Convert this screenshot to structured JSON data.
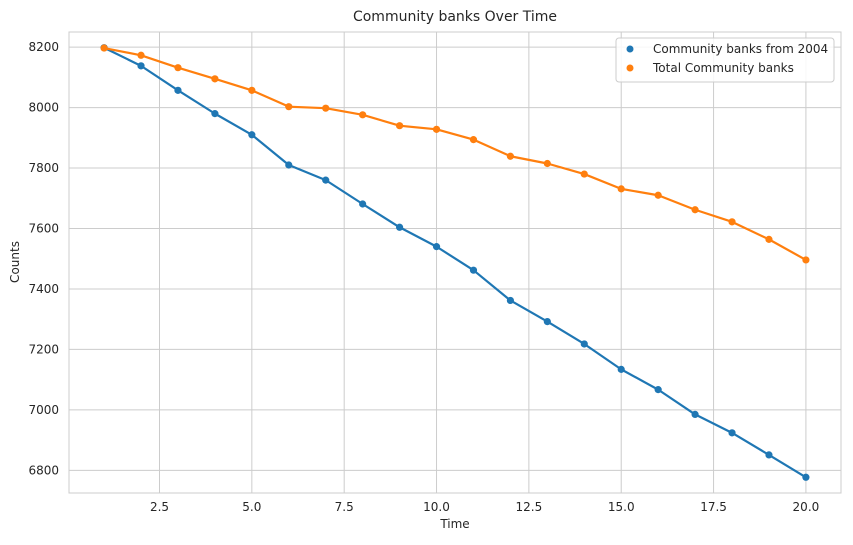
{
  "chart_data": {
    "type": "line",
    "title": "Community banks Over Time",
    "xlabel": "Time",
    "ylabel": "Counts",
    "xlim": [
      0.05,
      20.95
    ],
    "ylim": [
      6725,
      8250
    ],
    "xticks": [
      2.5,
      5.0,
      7.5,
      10.0,
      12.5,
      15.0,
      17.5,
      20.0
    ],
    "xtick_labels": [
      "2.5",
      "5.0",
      "7.5",
      "10.0",
      "12.5",
      "15.0",
      "17.5",
      "20.0"
    ],
    "yticks": [
      6800,
      7000,
      7200,
      7400,
      7600,
      7800,
      8000,
      8200
    ],
    "ytick_labels": [
      "6800",
      "7000",
      "7200",
      "7400",
      "7600",
      "7800",
      "8000",
      "8200"
    ],
    "grid": true,
    "legend_position": "top-right",
    "x": [
      1,
      2,
      3,
      4,
      5,
      6,
      7,
      8,
      9,
      10,
      11,
      12,
      13,
      14,
      15,
      16,
      17,
      18,
      19,
      20
    ],
    "series": [
      {
        "name": "Community banks from 2004",
        "color": "#1f77b4",
        "values": [
          8198,
          8138,
          8057,
          7980,
          7910,
          7810,
          7760,
          7681,
          7604,
          7540,
          7462,
          7362,
          7292,
          7218,
          7134,
          7067,
          6985,
          6924,
          6851,
          6777
        ]
      },
      {
        "name": "Total Community banks",
        "color": "#ff7f0e",
        "values": [
          8197,
          8173,
          8132,
          8095,
          8057,
          8003,
          7998,
          7976,
          7940,
          7928,
          7894,
          7839,
          7815,
          7780,
          7731,
          7710,
          7662,
          7622,
          7564,
          7496
        ]
      }
    ]
  }
}
